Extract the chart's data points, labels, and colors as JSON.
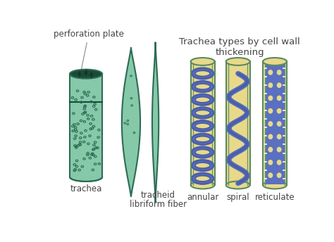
{
  "bg_color": "#ffffff",
  "trachea_fill": "#85c9a8",
  "trachea_outline": "#2d6b55",
  "trachea_dot": "#2d6b55",
  "trachea_dark": "#1a4a38",
  "tracheid_fill": "#85c9a8",
  "tracheid_outline": "#2d6b55",
  "fiber_fill": "#85c9a8",
  "fiber_outline": "#2d6b55",
  "tube_fill": "#e8d98a",
  "tube_outline": "#5a8a60",
  "tube_inner_line": "#6a9a70",
  "ring_blue": "#4a5fa8",
  "ring_blue_fill": "#5a70c0",
  "text_color": "#444444",
  "title_text": "Trachea types by cell wall\nthickening",
  "label_trachea": "trachea",
  "label_perforation": "perforation plate",
  "label_tracheid": "tracheid",
  "label_fiber": "libriform fiber",
  "label_annular": "annular",
  "label_spiral": "spiral",
  "label_reticulate": "reticulate",
  "font_size_labels": 8.5,
  "font_size_title": 9.5
}
